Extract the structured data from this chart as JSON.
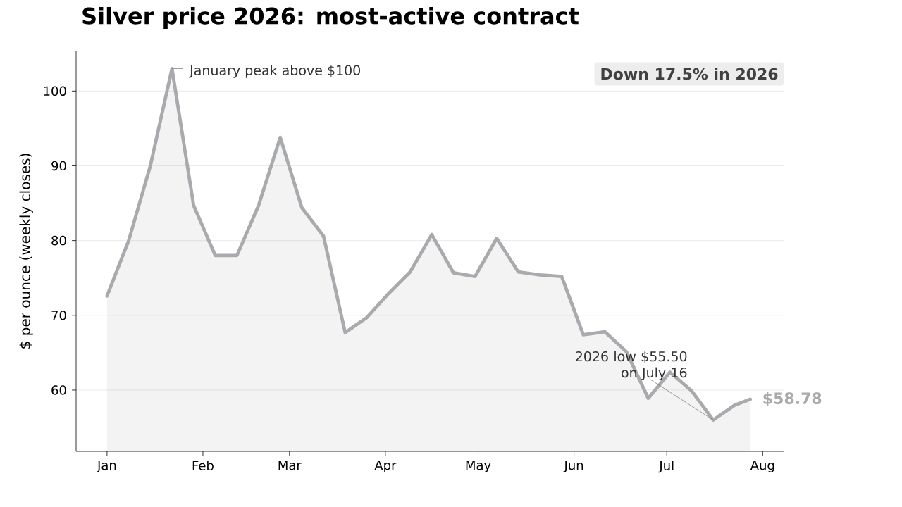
{
  "chart_data": {
    "type": "area",
    "title": "Silver price 2026: most-active contract",
    "ylabel": "$ per ounce (weekly closes)",
    "x": [
      "2026-01-01",
      "2026-01-08",
      "2026-01-15",
      "2026-01-22",
      "2026-01-29",
      "2026-02-05",
      "2026-02-12",
      "2026-02-19",
      "2026-02-26",
      "2026-03-05",
      "2026-03-12",
      "2026-03-19",
      "2026-03-26",
      "2026-04-02",
      "2026-04-09",
      "2026-04-16",
      "2026-04-23",
      "2026-04-30",
      "2026-05-07",
      "2026-05-14",
      "2026-05-21",
      "2026-05-28",
      "2026-06-04",
      "2026-06-11",
      "2026-06-18",
      "2026-06-25",
      "2026-07-02",
      "2026-07-09",
      "2026-07-16",
      "2026-07-23",
      "2026-07-28"
    ],
    "series": [
      {
        "color": "#a9aaad",
        "values": [
          72.6,
          80.0,
          90.0,
          103.0,
          84.7,
          78.0,
          78.0,
          84.7,
          93.8,
          84.4,
          80.6,
          67.7,
          69.7,
          72.9,
          75.8,
          80.8,
          75.7,
          75.2,
          80.3,
          75.8,
          75.4,
          75.2,
          67.4,
          67.8,
          65.1,
          58.9,
          62.4,
          59.9,
          56.0,
          58.0,
          58.78
        ]
      }
    ],
    "xlim": [
      "2025-12-22",
      "2026-08-08"
    ],
    "xticks": [
      {
        "value": "2026-01-01",
        "label": "Jan"
      },
      {
        "value": "2026-02-01",
        "label": "Feb"
      },
      {
        "value": "2026-03-01",
        "label": "Mar"
      },
      {
        "value": "2026-04-01",
        "label": "Apr"
      },
      {
        "value": "2026-05-01",
        "label": "May"
      },
      {
        "value": "2026-06-01",
        "label": "Jun"
      },
      {
        "value": "2026-07-01",
        "label": "Jul"
      },
      {
        "value": "2026-08-01",
        "label": "Aug"
      }
    ],
    "ylim": [
      51.8,
      105.4
    ],
    "yticks": [
      60,
      70,
      80,
      90,
      100
    ],
    "grid": "y",
    "marker": "none",
    "line_style": "solid",
    "annotations": [
      {
        "text": "January peak above $100",
        "x": "2026-01-22",
        "y": 103.0
      },
      {
        "text": "2026 low $55.50 on July 16",
        "x": "2026-07-16",
        "y": 56.0
      },
      {
        "text": "$58.78",
        "x": "2026-07-28",
        "y": 58.78
      },
      "Down 17.5% in 2026"
    ]
  }
}
